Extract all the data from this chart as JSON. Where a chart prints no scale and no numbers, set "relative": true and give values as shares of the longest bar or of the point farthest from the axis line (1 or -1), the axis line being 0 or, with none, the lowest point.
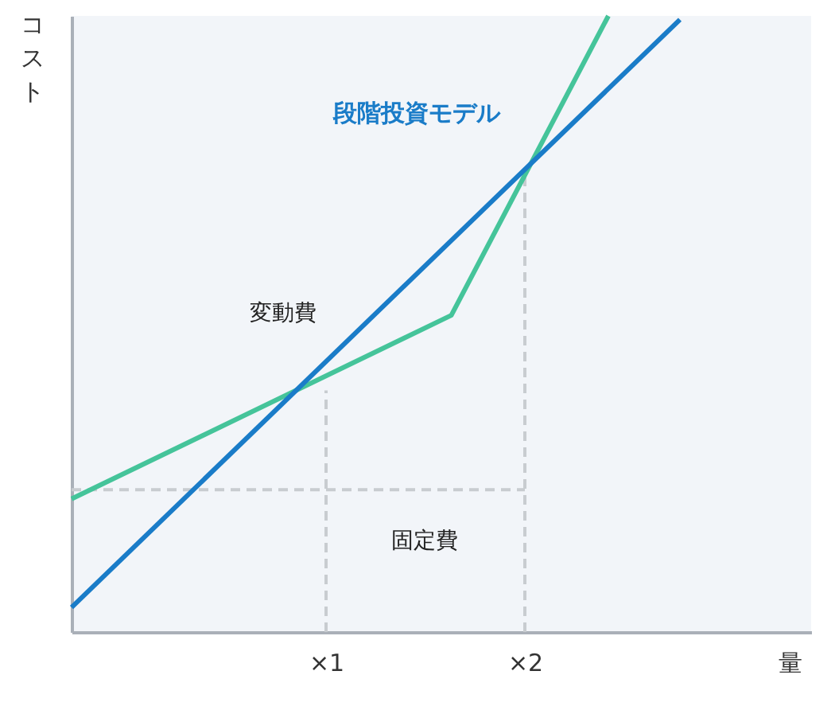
{
  "chart_data": {
    "type": "line",
    "relative": true,
    "title": "段階投資モデル",
    "xlabel": "量",
    "ylabel": "コスト",
    "xlim": [
      -0.28,
      3.44
    ],
    "xticks": [
      {
        "value": 1,
        "label": "×1"
      },
      {
        "value": 2,
        "label": "×2"
      }
    ],
    "series": [
      {
        "color": "#c8ccd0",
        "line_style": "dashed",
        "x": [
          -0.28,
          2
        ],
        "values": [
          0.231,
          0.231
        ]
      },
      {
        "color": "#c8ccd0",
        "line_style": "dashed",
        "x": [
          1,
          1
        ],
        "values": [
          0,
          0.392
        ]
      },
      {
        "color": "#c8ccd0",
        "line_style": "dashed",
        "x": [
          2,
          2
        ],
        "values": [
          0,
          0.751
        ]
      },
      {
        "color": "#45c49a",
        "line_style": "solid",
        "x": [
          -0.28,
          1.63,
          2.42
        ],
        "values": [
          0.216,
          0.514,
          1.0
        ]
      },
      {
        "color": "#1a7cc8",
        "line_style": "solid",
        "x": [
          -0.28,
          2.78
        ],
        "values": [
          0.04,
          0.994
        ]
      }
    ],
    "annotations": [
      "変動費",
      "固定費"
    ],
    "grid": false
  }
}
